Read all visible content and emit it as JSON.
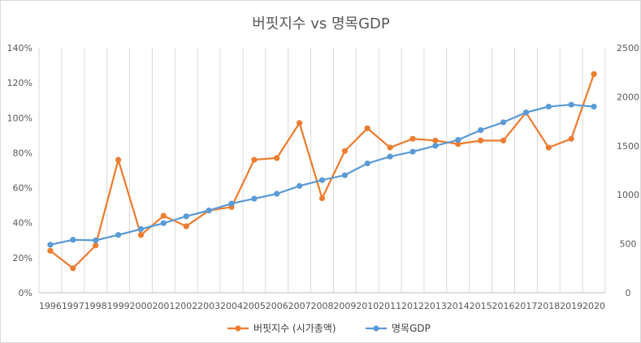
{
  "chart_data": {
    "type": "line",
    "title": "버핏지수 vs 명목GDP",
    "categories": [
      "1996",
      "1997",
      "1998",
      "1999",
      "2000",
      "2001",
      "2002",
      "2003",
      "2004",
      "2005",
      "2006",
      "2007",
      "2008",
      "2009",
      "2010",
      "2011",
      "2012",
      "2013",
      "2014",
      "2015",
      "2016",
      "2017",
      "2018",
      "2019",
      "2020"
    ],
    "y_left": {
      "ticks": [
        "0%",
        "20%",
        "40%",
        "60%",
        "80%",
        "100%",
        "120%",
        "140%"
      ],
      "range": [
        0,
        140
      ]
    },
    "y_right": {
      "ticks": [
        "0",
        "500",
        "1000",
        "1500",
        "2000",
        "2500"
      ],
      "range": [
        0,
        2500
      ]
    },
    "series": [
      {
        "name": "버핏지수 (시가총액)",
        "axis": "left",
        "color": "#ED7D31",
        "values": [
          24,
          14,
          27,
          76,
          33,
          44,
          38,
          47,
          49,
          76,
          77,
          97,
          54,
          81,
          94,
          83,
          88,
          87,
          85,
          87,
          87,
          103,
          83,
          88,
          125
        ]
      },
      {
        "name": "명목GDP",
        "axis": "right",
        "color": "#5B9BD5",
        "values": [
          490,
          540,
          535,
          590,
          650,
          710,
          780,
          840,
          910,
          960,
          1010,
          1090,
          1150,
          1200,
          1320,
          1390,
          1440,
          1500,
          1560,
          1660,
          1740,
          1840,
          1900,
          1920,
          1900
        ]
      }
    ],
    "gridlines": true,
    "legend": "bottom"
  }
}
